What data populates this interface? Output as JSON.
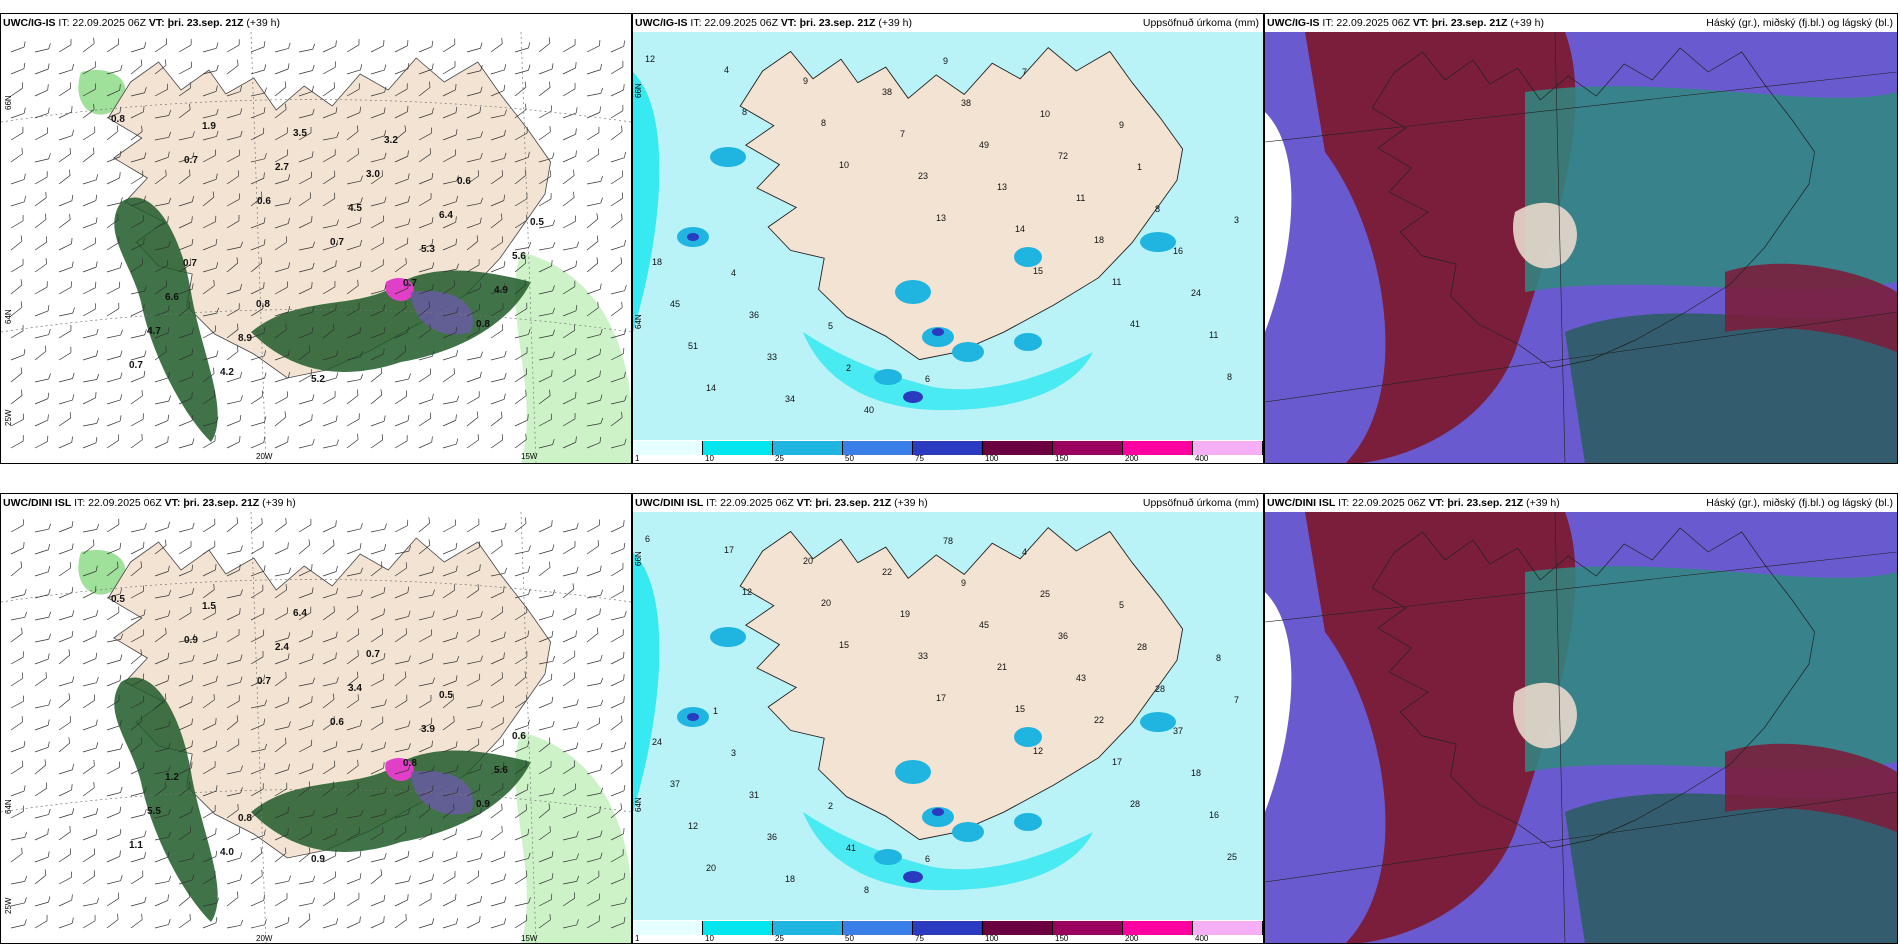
{
  "panels": {
    "top": {
      "left": {
        "model": "UWC/IG-IS",
        "it": "IT: 22.09.2025 06Z",
        "vt": "VT: þri. 23.sep. 21Z",
        "lead": "(+39 h)",
        "title": ""
      },
      "middle": {
        "model": "UWC/IG-IS",
        "it": "IT: 22.09.2025 06Z",
        "vt": "VT: þri. 23.sep. 21Z",
        "lead": "(+39 h)",
        "title": "Uppsöfnuð úrkoma (mm)"
      },
      "right": {
        "model": "UWC/IG-IS",
        "it": "IT: 22.09.2025 06Z",
        "vt": "VT: þri. 23.sep. 21Z",
        "lead": "(+39 h)",
        "title": "Háský (gr.), miðský (fj.bl.) og lágský (bl.)"
      }
    },
    "bottom": {
      "left": {
        "model": "UWC/DINI ISL",
        "it": "IT: 22.09.2025 06Z",
        "vt": "VT: þri. 23.sep. 21Z",
        "lead": "(+39 h)",
        "title": ""
      },
      "middle": {
        "model": "UWC/DINI ISL",
        "it": "IT: 22.09.2025 06Z",
        "vt": "VT: þri. 23.sep. 21Z",
        "lead": "(+39 h)",
        "title": "Uppsöfnuð úrkoma (mm)"
      },
      "right": {
        "model": "UWC/DINI ISL",
        "it": "IT: 22.09.2025 06Z",
        "vt": "VT: þri. 23.sep. 21Z",
        "lead": "(+39 h)",
        "title": "Háský (gr.), miðský (fj.bl.) og lágský (bl.)"
      }
    }
  },
  "axis_labels": {
    "lat66": "66N",
    "lat64": "64N",
    "lon20": "20W",
    "lon15": "15W",
    "lon25": "25W"
  },
  "colorbar": {
    "ticks": [
      "1",
      "10",
      "25",
      "50",
      "75",
      "100",
      "150",
      "200",
      "400"
    ],
    "colors": [
      "#e6ffff",
      "#00e5ee",
      "#1fb5e0",
      "#3a7fe8",
      "#2a3bc0",
      "#6a0040",
      "#9b0060",
      "#ff00a0",
      "#f5b0f5"
    ]
  },
  "precip_labels_top": [
    "12",
    "8",
    "10",
    "13",
    "15",
    "41",
    "8",
    "4",
    "8",
    "23",
    "14",
    "11",
    "11",
    "14",
    "9",
    "7",
    "13",
    "18",
    "24",
    "51",
    "34",
    "38",
    "49",
    "11",
    "16",
    "45",
    "33",
    "40",
    "38",
    "72",
    "8",
    "18",
    "36",
    "2",
    "9",
    "10",
    "1",
    "3",
    "4",
    "5",
    "6",
    "7",
    "9"
  ],
  "precip_labels_bottom": [
    "6",
    "12",
    "15",
    "17",
    "12",
    "28",
    "25",
    "17",
    "20",
    "33",
    "15",
    "17",
    "16",
    "20",
    "20",
    "19",
    "21",
    "22",
    "18",
    "12",
    "18",
    "22",
    "45",
    "43",
    "37",
    "37",
    "36",
    "8",
    "9",
    "36",
    "28",
    "24",
    "31",
    "41",
    "78",
    "25",
    "28",
    "7",
    "3",
    "2",
    "6",
    "4",
    "5",
    "8",
    "1"
  ],
  "wind_values_top": [
    "0.8",
    "0.7",
    "0.6",
    "0.7",
    "0.7",
    "0.8",
    "0.7",
    "1.9",
    "2.7",
    "4.5",
    "5.3",
    "4.9",
    "4.7",
    "4.2",
    "3.5",
    "3.0",
    "6.4",
    "5.6",
    "6.6",
    "8.9",
    "5.2",
    "3.2",
    "0.6",
    "0.5",
    "0.7",
    "0.8"
  ],
  "wind_values_bottom": [
    "0.5",
    "0.9",
    "0.7",
    "0.6",
    "0.8",
    "0.9",
    "1.1",
    "1.5",
    "2.4",
    "3.4",
    "3.9",
    "5.6",
    "5.5",
    "4.0",
    "6.4",
    "0.7",
    "0.5",
    "0.6",
    "1.2",
    "0.8",
    "0.9"
  ],
  "colors": {
    "land": "#f3e3d3",
    "sea_light": "#b9f2f7",
    "cyan": "#00e5ee",
    "green_dark": "#1e5a28",
    "maroon": "#7a1e3c",
    "purple": "#6a5ad0",
    "teal": "#2f8a7f"
  }
}
